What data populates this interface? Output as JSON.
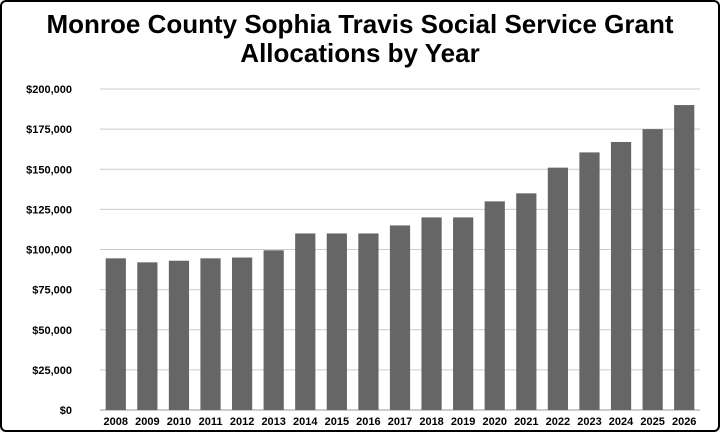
{
  "chart_data": {
    "type": "bar",
    "title_lines": [
      "Monroe County Sophia Travis Social Service Grant",
      "Allocations by Year"
    ],
    "categories": [
      "2008",
      "2009",
      "2010",
      "2011",
      "2012",
      "2013",
      "2014",
      "2015",
      "2016",
      "2017",
      "2018",
      "2019",
      "2020",
      "2021",
      "2022",
      "2023",
      "2024",
      "2025",
      "2026"
    ],
    "values": [
      94500,
      92000,
      93000,
      94500,
      95000,
      99500,
      110000,
      110000,
      110000,
      115000,
      120000,
      120000,
      130000,
      135000,
      151000,
      160500,
      167000,
      175000,
      190000
    ],
    "ylim": [
      0,
      200000
    ],
    "yticks": [
      0,
      25000,
      50000,
      75000,
      100000,
      125000,
      150000,
      175000,
      200000
    ],
    "ytick_labels": [
      "$0",
      "$25,000",
      "$50,000",
      "$75,000",
      "$100,000",
      "$125,000",
      "$150,000",
      "$175,000",
      "$200,000"
    ],
    "grid": true,
    "legend": "none",
    "bar_color": "#666666",
    "grid_color": "#cccccc"
  }
}
